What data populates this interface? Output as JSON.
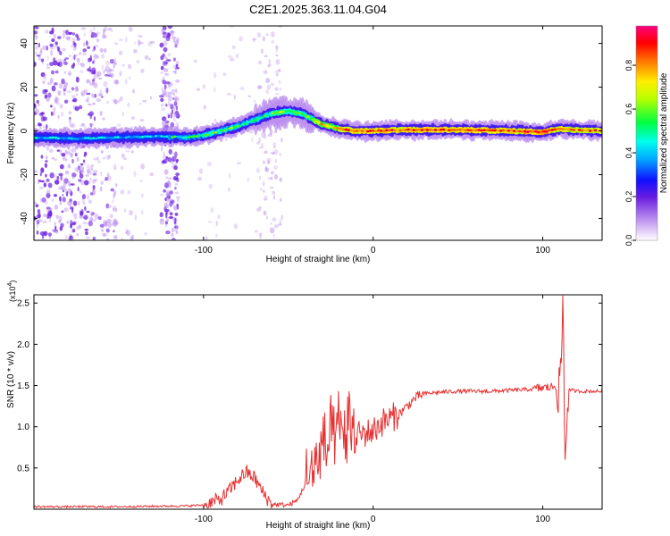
{
  "chart_data": [
    {
      "type": "heatmap",
      "title": "C2E1.2025.363.11.04.G04",
      "xlabel": "Height of straight line (km)",
      "ylabel": "Frequency (Hz)",
      "xlim": [
        -200,
        135
      ],
      "ylim": [
        -50,
        48
      ],
      "x_ticks": [
        -100,
        0,
        100
      ],
      "y_ticks": [
        -40,
        -20,
        0,
        20,
        40
      ],
      "colorbar": {
        "label": "Normalized spectral amplitude",
        "range": [
          0,
          0.98
        ],
        "ticks": [
          "0.0",
          "0.2",
          "0.4",
          "0.6",
          "0.8"
        ],
        "colormap": [
          "#ffffff",
          "#b070f0",
          "#6000e0",
          "#0010ff",
          "#00ffff",
          "#00ff00",
          "#ffff00",
          "#ff8000",
          "#ff0000",
          "#ff0080"
        ]
      },
      "ridge": {
        "x": [
          -200,
          -175,
          -150,
          -125,
          -110,
          -100,
          -90,
          -80,
          -70,
          -60,
          -50,
          -42,
          -35,
          -30,
          -20,
          -10,
          0,
          20,
          50,
          80,
          100,
          110,
          120,
          135
        ],
        "freq": [
          -3,
          -3.5,
          -3,
          -2.5,
          -3,
          -2,
          0,
          2,
          5,
          8,
          9,
          8,
          5,
          3,
          1,
          0,
          0,
          0.5,
          0.5,
          0,
          -0.5,
          1,
          0.5,
          0
        ]
      }
    },
    {
      "type": "line",
      "xlabel": "Height of straight line (km)",
      "ylabel": "SNR (10 * v/v)",
      "scale_label": "(x10",
      "scale_exponent": "4",
      "xlim": [
        -200,
        135
      ],
      "ylim": [
        0,
        2.6
      ],
      "x_ticks": [
        -100,
        0,
        100
      ],
      "y_ticks": [
        "0.5",
        "1.0",
        "1.5",
        "2.0",
        "2.5"
      ],
      "series": [
        {
          "name": "SNR",
          "color": "#e83030",
          "x": [
            -200,
            -150,
            -110,
            -100,
            -90,
            -85,
            -80,
            -75,
            -70,
            -65,
            -60,
            -50,
            -45,
            -40,
            -35,
            -30,
            -25,
            -20,
            -15,
            -10,
            -5,
            0,
            5,
            10,
            15,
            20,
            25,
            30,
            40,
            50,
            60,
            70,
            80,
            90,
            95,
            100,
            105,
            108,
            110,
            111,
            112,
            113,
            115,
            120,
            130,
            135
          ],
          "y": [
            0.03,
            0.03,
            0.04,
            0.05,
            0.12,
            0.22,
            0.35,
            0.45,
            0.38,
            0.2,
            0.06,
            0.05,
            0.1,
            0.3,
            0.5,
            0.7,
            0.8,
            0.9,
            0.95,
            0.9,
            0.92,
            0.95,
            1.05,
            1.1,
            1.15,
            1.25,
            1.35,
            1.4,
            1.42,
            1.43,
            1.43,
            1.43,
            1.44,
            1.45,
            1.46,
            1.47,
            1.48,
            1.5,
            1.4,
            1.9,
            2.6,
            0.55,
            1.45,
            1.43,
            1.43,
            1.43
          ]
        }
      ]
    }
  ]
}
